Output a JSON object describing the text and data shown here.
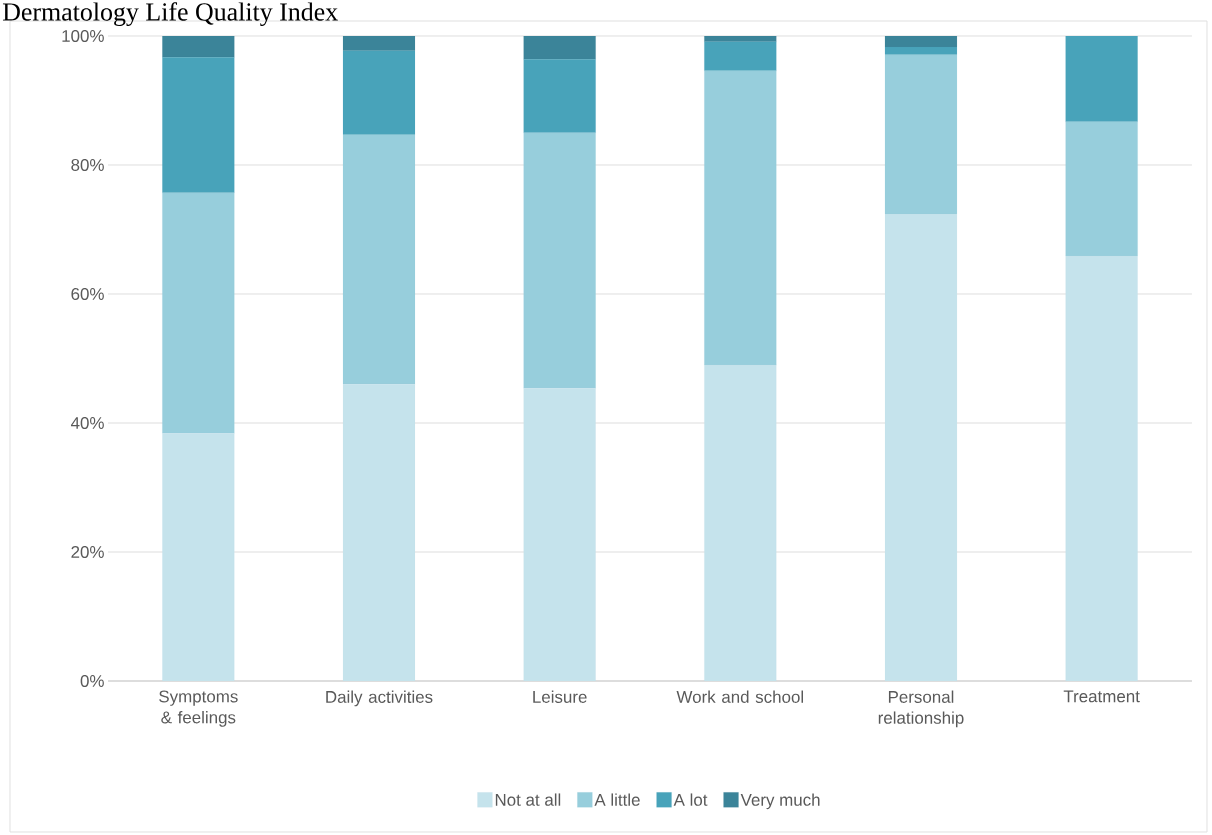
{
  "chart_data": {
    "type": "bar",
    "title": "Dermatology Life Quality Index",
    "stacked": true,
    "categories": [
      "Symptoms & feelings",
      "Daily activities",
      "Leisure",
      "Work and school",
      "Personal relationship",
      "Treatment"
    ],
    "series": [
      {
        "name": "Not at all",
        "color": "#c5e3ec",
        "values": [
          38.4,
          46.0,
          45.4,
          49.0,
          72.4,
          65.9
        ]
      },
      {
        "name": "A little",
        "color": "#97cedc",
        "values": [
          37.3,
          38.7,
          39.6,
          45.6,
          24.7,
          20.8
        ]
      },
      {
        "name": "A lot",
        "color": "#48a3ba",
        "values": [
          21.0,
          13.0,
          11.4,
          4.5,
          1.2,
          13.3
        ]
      },
      {
        "name": "Very much",
        "color": "#3b8499",
        "values": [
          3.3,
          2.3,
          3.6,
          0.9,
          1.7,
          0
        ]
      }
    ],
    "ylim": [
      0,
      100
    ],
    "yticks": [
      {
        "value": 0,
        "label": "0%"
      },
      {
        "value": 20,
        "label": "20%"
      },
      {
        "value": 40,
        "label": "40%"
      },
      {
        "value": 60,
        "label": "60%"
      },
      {
        "value": 80,
        "label": "80%"
      },
      {
        "value": 100,
        "label": "100%"
      }
    ],
    "grid": "y",
    "legend": "bottom"
  }
}
